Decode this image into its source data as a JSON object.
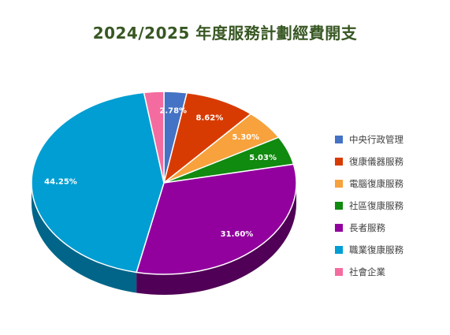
{
  "chart_data": {
    "type": "pie",
    "title": "2024/2025 年度服務計劃經費開支",
    "slices": [
      {
        "label": "中央行政管理",
        "value": 2.78,
        "display": "2.78%",
        "color": "#4472C4",
        "side": "#27457A"
      },
      {
        "label": "復康儀器服務",
        "value": 8.62,
        "display": "8.62%",
        "color": "#D83B01",
        "side": "#852400"
      },
      {
        "label": "電腦復康服務",
        "value": 5.3,
        "display": "5.30%",
        "color": "#F7A23C",
        "side": "#A8661C"
      },
      {
        "label": "社區復康服務",
        "value": 5.03,
        "display": "5.03%",
        "color": "#108A0F",
        "side": "#0A560A"
      },
      {
        "label": "長者服務",
        "value": 31.6,
        "display": "31.60%",
        "color": "#92009E",
        "side": "#500056"
      },
      {
        "label": "職業復康服務",
        "value": 44.25,
        "display": "44.25%",
        "color": "#009ED3",
        "side": "#006588"
      },
      {
        "label": "社會企業",
        "value": 2.42,
        "display": "",
        "color": "#F46C9F",
        "side": "#A1456A"
      }
    ],
    "legend_position": "right"
  }
}
